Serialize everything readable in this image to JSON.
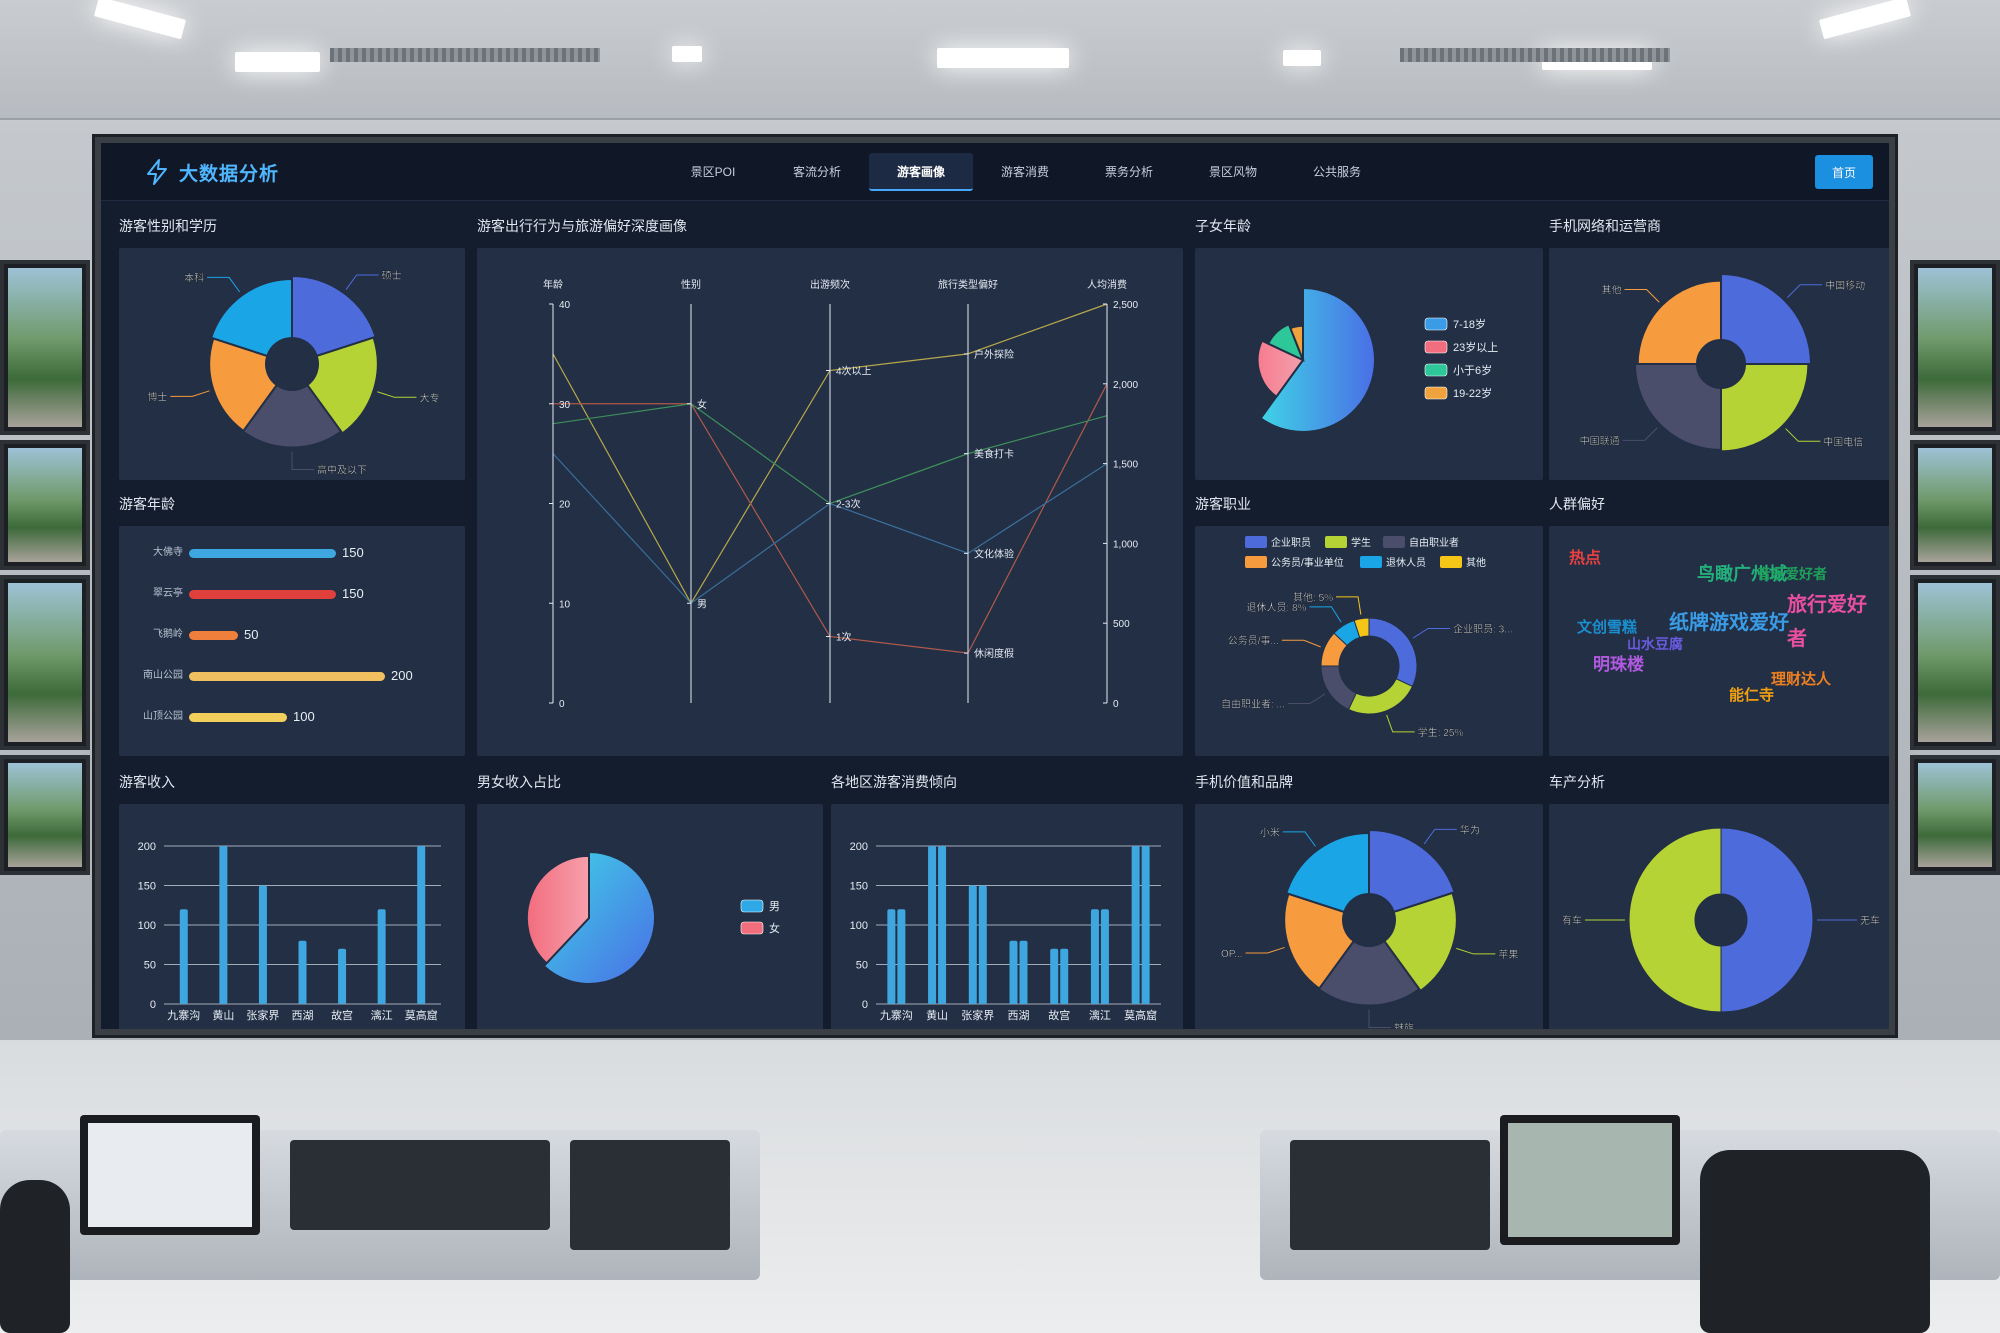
{
  "header": {
    "brand_title": "大数据分析",
    "tabs": [
      {
        "label": "景区POI",
        "active": false
      },
      {
        "label": "客流分析",
        "active": false
      },
      {
        "label": "游客画像",
        "active": true
      },
      {
        "label": "游客消费",
        "active": false
      },
      {
        "label": "票务分析",
        "active": false
      },
      {
        "label": "景区风物",
        "active": false
      },
      {
        "label": "公共服务",
        "active": false
      }
    ],
    "home_label": "首页"
  },
  "panels": {
    "gender_edu": "游客性别和学历",
    "age": "游客年龄",
    "parallel": "游客出行行为与旅游偏好深度画像",
    "child_age": "子女年龄",
    "network": "手机网络和运营商",
    "occupation": "游客职业",
    "crowd": "人群偏好",
    "income": "游客收入",
    "gender_income": "男女收入占比",
    "region": "各地区游客消费倾向",
    "phone_brand": "手机价值和品牌",
    "car": "车产分析"
  },
  "chart_data": [
    {
      "id": "gender_edu",
      "type": "pie",
      "variant": "rose-donut",
      "labels": [
        "硕士",
        "大专",
        "高中及以下",
        "博士",
        "本科"
      ],
      "values": [
        24,
        21,
        18,
        17,
        20
      ],
      "colors": [
        "#4e6bdc",
        "#b5d334",
        "#4a4e6b",
        "#f79b3f",
        "#1aa6e6"
      ]
    },
    {
      "id": "age",
      "type": "bar",
      "orientation": "horizontal",
      "categories": [
        "大佛寺",
        "翠云亭",
        "飞鹅岭",
        "南山公园",
        "山顶公园"
      ],
      "values": [
        150,
        150,
        50,
        200,
        100
      ],
      "colors": [
        "#3fa7e0",
        "#e0403c",
        "#ef7f3a",
        "#f0c060",
        "#f2cf5a"
      ]
    },
    {
      "id": "parallel",
      "type": "line",
      "variant": "parallel-coordinates",
      "axes": [
        {
          "name": "年龄",
          "ticks": [
            "40",
            "30",
            "20",
            "10",
            "0"
          ],
          "range": [
            0,
            40
          ]
        },
        {
          "name": "性别",
          "categories": [
            "女",
            "男"
          ]
        },
        {
          "name": "出游频次",
          "categories": [
            "4次以上",
            "2-3次",
            "1次"
          ]
        },
        {
          "name": "旅行类型偏好",
          "categories": [
            "户外探险",
            "美食打卡",
            "文化体验",
            "休闲度假"
          ]
        },
        {
          "name": "人均消费",
          "ticks": [
            "2,500",
            "2,000",
            "1,500",
            "1,000",
            "500",
            "0"
          ],
          "range": [
            0,
            2500
          ]
        }
      ],
      "series": [
        {
          "values": [
            35,
            "男",
            "4次以上",
            "户外探险",
            2500
          ],
          "color": "#b8a84a"
        },
        {
          "values": [
            30,
            "女",
            "1次",
            "休闲度假",
            2000
          ],
          "color": "#b05a4a"
        },
        {
          "values": [
            28,
            "女",
            "2-3次",
            "美食打卡",
            1800
          ],
          "color": "#3e8f5a"
        },
        {
          "values": [
            25,
            "男",
            "2-3次",
            "文化体验",
            1500
          ],
          "color": "#3b6f9b"
        }
      ]
    },
    {
      "id": "child_age",
      "type": "pie",
      "variant": "rose",
      "labels": [
        "7-18岁",
        "23岁以上",
        "小于6岁",
        "19-22岁"
      ],
      "values": [
        60,
        22,
        12,
        6
      ],
      "colors": [
        "#3a9be6",
        "#f26d7d",
        "#2dc79a",
        "#f0a23c"
      ]
    },
    {
      "id": "network",
      "type": "pie",
      "variant": "rose-donut",
      "labels": [
        "中国移动",
        "中国电信",
        "中国联通",
        "其他"
      ],
      "values": [
        30,
        26,
        24,
        20
      ],
      "colors": [
        "#4e6bdc",
        "#b5d334",
        "#4a4e6b",
        "#f79b3f"
      ]
    },
    {
      "id": "occupation",
      "type": "pie",
      "variant": "donut",
      "labels": [
        "企业职员",
        "学生",
        "自由职业者",
        "公务员/事业单位",
        "退休人员",
        "其他"
      ],
      "outer_labels": [
        "企业职员: 3...",
        "学生: 25%",
        "自由职业者: ...",
        "公务员/事...",
        "退休人员: 8%",
        "其他: 5%"
      ],
      "values": [
        32,
        25,
        18,
        12,
        8,
        5
      ],
      "colors": [
        "#4e6bdc",
        "#b5d334",
        "#4a4e6b",
        "#f79b3f",
        "#1aa6e6",
        "#f5c518"
      ]
    },
    {
      "id": "crowd",
      "type": "table",
      "variant": "word-cloud",
      "words": [
        {
          "text": "热点",
          "color": "#e84040"
        },
        {
          "text": "鸟瞰广州城",
          "color": "#23b07a"
        },
        {
          "text": "音乐爱好者",
          "color": "#1ea05a"
        },
        {
          "text": "旅行爱好",
          "color": "#e84fa0"
        },
        {
          "text": "纸牌游戏爱好",
          "color": "#3a9be6"
        },
        {
          "text": "者",
          "color": "#e84fa0"
        },
        {
          "text": "文创雪糕",
          "color": "#1a8fd0"
        },
        {
          "text": "山水豆腐",
          "color": "#6a5ae0"
        },
        {
          "text": "明珠楼",
          "color": "#b05ae0"
        },
        {
          "text": "理财达人",
          "color": "#f08020"
        },
        {
          "text": "能仁寺",
          "color": "#f0a010"
        }
      ]
    },
    {
      "id": "income",
      "type": "bar",
      "categories": [
        "九寨沟",
        "黄山",
        "张家界",
        "西湖",
        "故宫",
        "漓江",
        "莫高窟"
      ],
      "values": [
        120,
        200,
        150,
        80,
        70,
        120,
        200
      ],
      "ylim": [
        0,
        200
      ],
      "yticks": [
        "0",
        "50",
        "100",
        "150",
        "200"
      ],
      "color": "#3fa7e0"
    },
    {
      "id": "gender_income",
      "type": "pie",
      "variant": "rose",
      "labels": [
        "男",
        "女"
      ],
      "values": [
        62,
        38
      ],
      "colors": [
        "#2fa8e8",
        "#f26d7d"
      ]
    },
    {
      "id": "region",
      "type": "bar",
      "categories": [
        "九寨沟",
        "黄山",
        "张家界",
        "西湖",
        "故宫",
        "漓江",
        "莫高窟"
      ],
      "series": [
        {
          "values": [
            120,
            200,
            150,
            80,
            70,
            120,
            200
          ]
        },
        {
          "values": [
            120,
            200,
            150,
            80,
            70,
            120,
            200
          ]
        }
      ],
      "ylim": [
        0,
        200
      ],
      "yticks": [
        "0",
        "50",
        "100",
        "150",
        "200"
      ],
      "color": "#3fa7e0"
    },
    {
      "id": "phone_brand",
      "type": "pie",
      "variant": "rose-donut",
      "labels": [
        "华为",
        "苹果",
        "魅族",
        "OP...",
        "小米"
      ],
      "values": [
        24,
        21,
        18,
        17,
        20
      ],
      "colors": [
        "#4e6bdc",
        "#b5d334",
        "#4a4e6b",
        "#f79b3f",
        "#1aa6e6"
      ]
    },
    {
      "id": "car",
      "type": "pie",
      "variant": "donut",
      "labels": [
        "无车",
        "有车"
      ],
      "values": [
        50,
        50
      ],
      "colors": [
        "#4e6bdc",
        "#b5d334"
      ]
    }
  ]
}
